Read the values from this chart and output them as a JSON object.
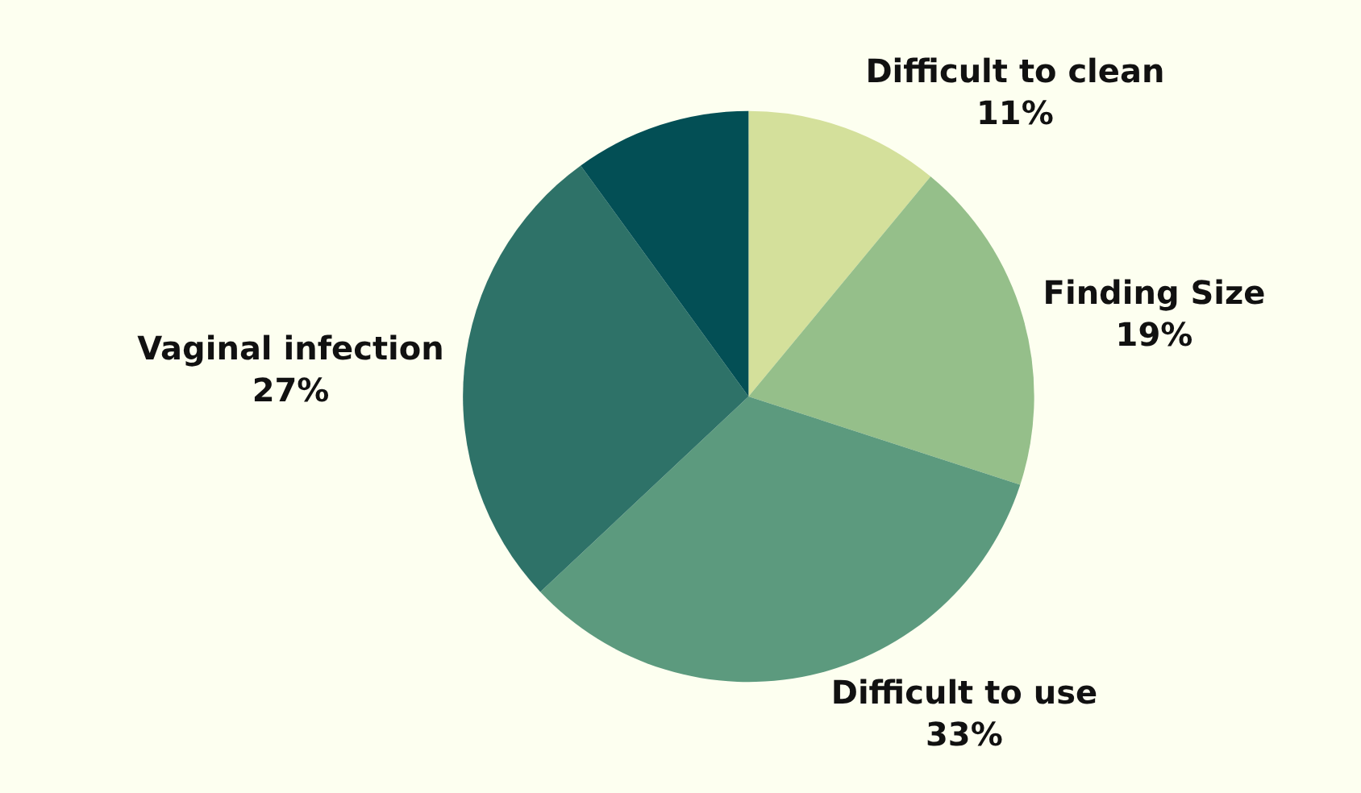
{
  "chart_data": {
    "type": "pie",
    "categories": [
      "Difficult to clean",
      "Finding Size",
      "Difficult to use",
      "Vaginal infection",
      null
    ],
    "values": [
      11,
      19,
      33,
      27,
      10
    ],
    "value_labels": [
      "11%",
      "19%",
      "33%",
      "27%",
      null
    ],
    "colors": [
      "#d4e09b",
      "#95bf8a",
      "#5c9a7e",
      "#2e7268",
      "#034f55"
    ],
    "legend": false
  }
}
